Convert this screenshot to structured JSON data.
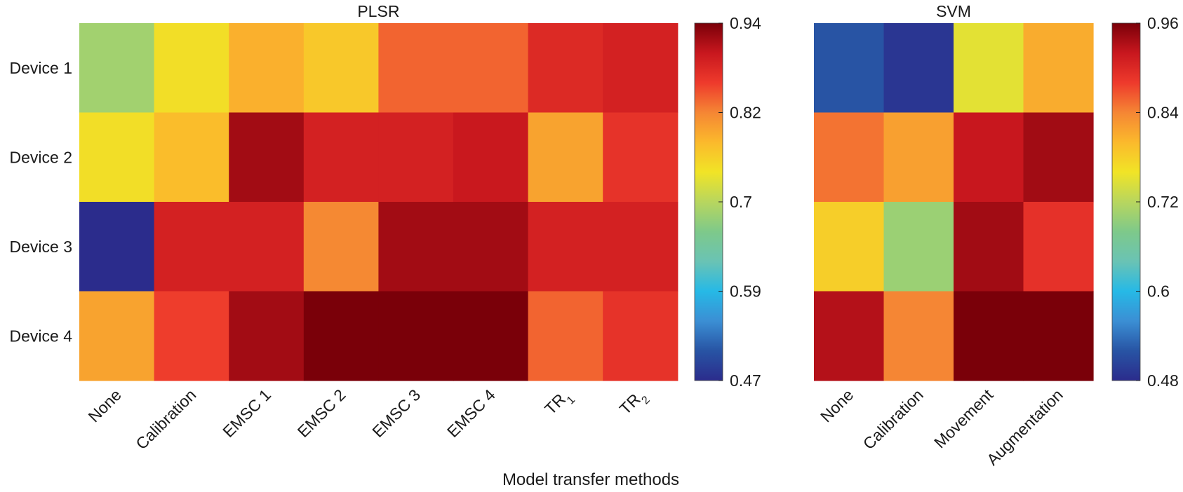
{
  "chart_data": [
    {
      "type": "heatmap",
      "title": "PLSR",
      "rows": [
        "Device 1",
        "Device 2",
        "Device 3",
        "Device 4"
      ],
      "columns": [
        {
          "base": "None",
          "sub": ""
        },
        {
          "base": "Calibration",
          "sub": ""
        },
        {
          "base": "EMSC 1",
          "sub": ""
        },
        {
          "base": "EMSC 2",
          "sub": ""
        },
        {
          "base": "EMSC 3",
          "sub": ""
        },
        {
          "base": "EMSC 4",
          "sub": ""
        },
        {
          "base": "TR",
          "sub": "1"
        },
        {
          "base": "TR",
          "sub": "2"
        }
      ],
      "values": [
        [
          0.69,
          0.75,
          0.79,
          0.77,
          0.84,
          0.84,
          0.88,
          0.89
        ],
        [
          0.75,
          0.78,
          0.92,
          0.89,
          0.89,
          0.9,
          0.8,
          0.87
        ],
        [
          0.47,
          0.89,
          0.89,
          0.82,
          0.92,
          0.92,
          0.89,
          0.89
        ],
        [
          0.8,
          0.86,
          0.92,
          0.94,
          0.94,
          0.94,
          0.84,
          0.87
        ]
      ],
      "colorbar": {
        "min": 0.47,
        "max": 0.94,
        "ticks": [
          "0.94",
          "0.82",
          "0.7",
          "0.59",
          "0.47"
        ]
      }
    },
    {
      "type": "heatmap",
      "title": "SVM",
      "rows": [
        "Device 1",
        "Device 2",
        "Device 3",
        "Device 4"
      ],
      "columns": [
        {
          "base": "None",
          "sub": ""
        },
        {
          "base": "Calibration",
          "sub": ""
        },
        {
          "base": "Movement",
          "sub": ""
        },
        {
          "base": "Augmentation",
          "sub": ""
        }
      ],
      "values": [
        [
          0.52,
          0.49,
          0.75,
          0.81
        ],
        [
          0.85,
          0.82,
          0.92,
          0.94
        ],
        [
          0.78,
          0.7,
          0.94,
          0.89
        ],
        [
          0.93,
          0.84,
          0.96,
          0.96
        ]
      ],
      "colorbar": {
        "min": 0.48,
        "max": 0.96,
        "ticks": [
          "0.96",
          "0.84",
          "0.72",
          "0.6",
          "0.48"
        ]
      }
    }
  ],
  "xlabel": "Model transfer methods",
  "colormap": [
    "#2b2c8c",
    "#2854a4",
    "#3b8fd4",
    "#26b9e6",
    "#6ac3b4",
    "#7ec98a",
    "#b8d65e",
    "#f1e426",
    "#fbb92c",
    "#f58634",
    "#ee3a2c",
    "#c8171e",
    "#7a0009"
  ]
}
